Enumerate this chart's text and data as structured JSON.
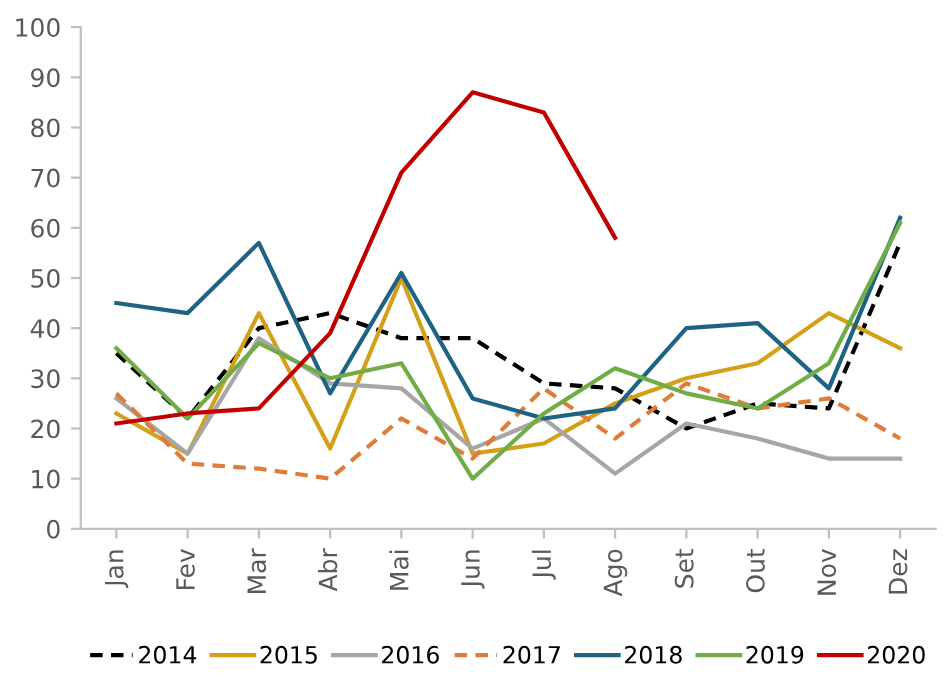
{
  "chart_data": {
    "type": "line",
    "categories": [
      "Jan",
      "Fev",
      "Mar",
      "Abr",
      "Mai",
      "Jun",
      "Jul",
      "Ago",
      "Set",
      "Out",
      "Nov",
      "Dez"
    ],
    "series": [
      {
        "name": "2014",
        "color": "#000000",
        "line_style": "dashed",
        "values": [
          35,
          22,
          40,
          43,
          38,
          38,
          29,
          28,
          20,
          25,
          24,
          57
        ]
      },
      {
        "name": "2015",
        "color": "#d4a017",
        "values": [
          23,
          15,
          43,
          16,
          50,
          15,
          17,
          25,
          30,
          33,
          43,
          36
        ]
      },
      {
        "name": "2016",
        "color": "#a6a6a6",
        "values": [
          26,
          15,
          38,
          29,
          28,
          16,
          22,
          11,
          21,
          18,
          14,
          14
        ]
      },
      {
        "name": "2017",
        "color": "#e07b39",
        "line_style": "dashed",
        "values": [
          27,
          13,
          12,
          10,
          22,
          14,
          28,
          18,
          29,
          24,
          26,
          18
        ]
      },
      {
        "name": "2018",
        "color": "#1f6384",
        "values": [
          45,
          43,
          57,
          27,
          51,
          26,
          22,
          24,
          40,
          41,
          28,
          62
        ]
      },
      {
        "name": "2019",
        "color": "#70ad47",
        "values": [
          36,
          22,
          37,
          30,
          33,
          10,
          23,
          32,
          27,
          24,
          33,
          61
        ]
      },
      {
        "name": "2020",
        "color": "#c00000",
        "values": [
          21,
          23,
          24,
          39,
          71,
          87,
          83,
          58,
          null,
          null,
          null,
          null
        ]
      }
    ],
    "ylim": [
      0,
      100
    ],
    "yticks": [
      0,
      10,
      20,
      30,
      40,
      50,
      60,
      70,
      80,
      90,
      100
    ],
    "grid": false,
    "legend": "bottom",
    "marker": "none"
  }
}
